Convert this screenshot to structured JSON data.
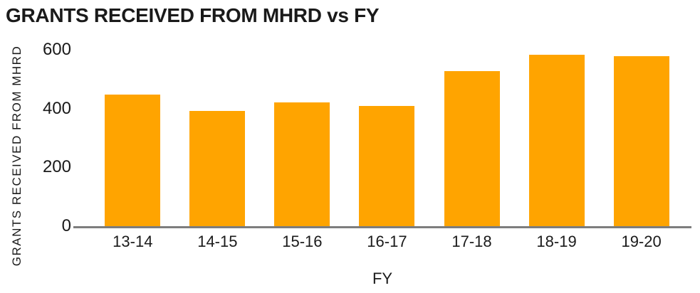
{
  "chart_data": {
    "type": "bar",
    "title": "GRANTS RECEIVED FROM MHRD vs FY",
    "xlabel": "FY",
    "ylabel": "GRANTS RECEIVED FROM MHRD",
    "categories": [
      "13-14",
      "14-15",
      "15-16",
      "16-17",
      "17-18",
      "18-19",
      "19-20"
    ],
    "values": [
      448,
      393,
      420,
      410,
      528,
      582,
      578
    ],
    "ylim": [
      0,
      600
    ],
    "yticks": [
      0,
      200,
      400,
      600
    ],
    "grid": false,
    "legend_position": "none",
    "bar_color": "#FFA400",
    "axis_line_color": "#7d7d7d",
    "text_color": "#1a1a1a",
    "background_color": "#ffffff"
  }
}
